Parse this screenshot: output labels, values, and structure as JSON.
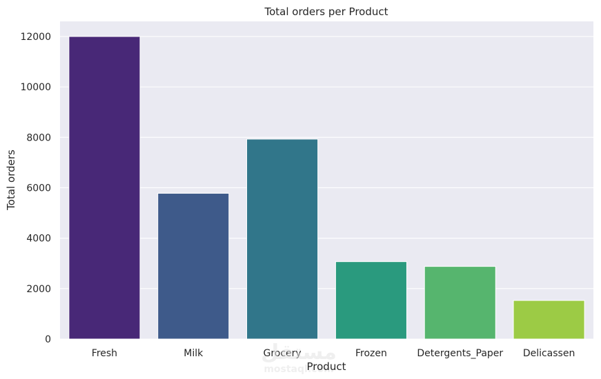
{
  "chart_data": {
    "type": "bar",
    "title": "Total orders per Product",
    "xlabel": "Product",
    "ylabel": "Total orders",
    "categories": [
      "Fresh",
      "Milk",
      "Grocery",
      "Frozen",
      "Detergents_Paper",
      "Delicassen"
    ],
    "values": [
      12000,
      5780,
      7930,
      3070,
      2880,
      1530
    ],
    "ylim": [
      0,
      12600
    ],
    "yticks": [
      0,
      2000,
      4000,
      6000,
      8000,
      10000,
      12000
    ],
    "grid": true,
    "colors": [
      "#482877",
      "#3e5a8a",
      "#31768a",
      "#2a9a7e",
      "#56b56e",
      "#9ccb45"
    ],
    "background": "#eaeaf2"
  },
  "watermark": {
    "text_arabic": "مستقل",
    "text_latin": "mostaql.com"
  }
}
